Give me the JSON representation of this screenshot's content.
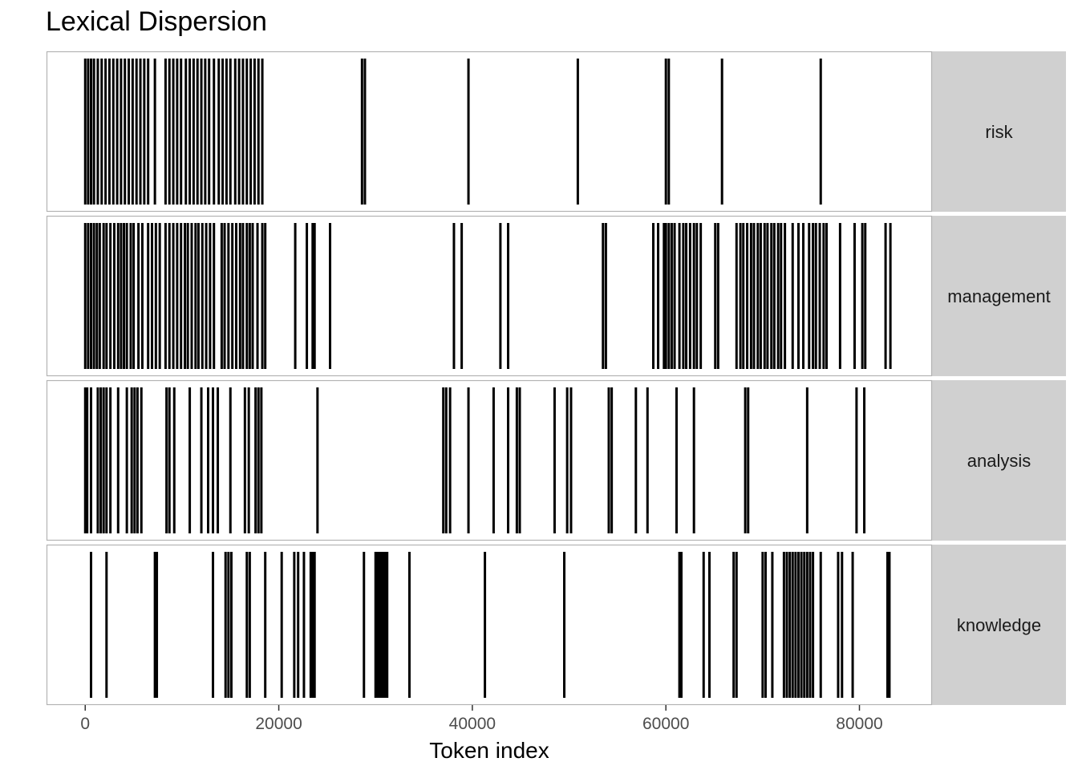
{
  "chart_data": {
    "type": "dispersion",
    "title": "Lexical Dispersion",
    "xlabel": "Token index",
    "ylabel": "",
    "xlim": [
      -4000,
      87500
    ],
    "x_ticks": [
      0,
      20000,
      40000,
      60000,
      80000
    ],
    "x_tick_labels": [
      "0",
      "20000",
      "40000",
      "60000",
      "80000"
    ],
    "grid": false,
    "facet_strip_position": "right",
    "panels": [
      {
        "name": "risk",
        "positions": [
          0,
          300,
          600,
          900,
          1300,
          1700,
          2100,
          2500,
          2900,
          3300,
          3700,
          4100,
          4500,
          4900,
          5300,
          5700,
          6100,
          6500,
          7200,
          8300,
          8700,
          9100,
          9500,
          9900,
          10400,
          10800,
          11200,
          11600,
          12000,
          12400,
          12800,
          13300,
          13800,
          14200,
          14600,
          15000,
          15500,
          15900,
          16300,
          16700,
          17100,
          17500,
          17900,
          18300,
          28600,
          28900,
          39600,
          50900,
          60000,
          60300,
          65800,
          76000
        ]
      },
      {
        "name": "management",
        "positions": [
          0,
          300,
          600,
          900,
          1200,
          1500,
          1900,
          2200,
          2600,
          3000,
          3400,
          3700,
          4000,
          4300,
          4700,
          5000,
          5500,
          5900,
          6500,
          6900,
          7300,
          7700,
          8300,
          8700,
          9100,
          9500,
          9900,
          10300,
          10600,
          11000,
          11400,
          11700,
          12100,
          12500,
          12900,
          13300,
          14100,
          14400,
          14800,
          15200,
          15600,
          16000,
          16300,
          16700,
          17000,
          17300,
          17800,
          18300,
          18600,
          21700,
          22900,
          23500,
          23700,
          25300,
          38100,
          38900,
          42900,
          43700,
          53500,
          53800,
          58700,
          59200,
          59800,
          60000,
          60300,
          60600,
          60900,
          61400,
          61800,
          62100,
          62500,
          62900,
          63200,
          63600,
          65100,
          65400,
          67300,
          67700,
          68000,
          68400,
          68800,
          69100,
          69500,
          69800,
          70200,
          70500,
          70900,
          71200,
          71600,
          71900,
          72300,
          73100,
          73700,
          74200,
          74800,
          75200,
          75500,
          75900,
          76300,
          76600,
          78000,
          79500,
          80300,
          80600,
          82700,
          83200
        ]
      },
      {
        "name": "analysis",
        "positions": [
          0,
          200,
          600,
          1300,
          1600,
          1900,
          2200,
          2600,
          3400,
          4300,
          4800,
          5100,
          5400,
          5800,
          8400,
          8700,
          9200,
          10800,
          12000,
          12700,
          13200,
          13700,
          15000,
          16500,
          16900,
          17600,
          17900,
          18200,
          24000,
          37000,
          37300,
          37700,
          39600,
          42200,
          43700,
          44600,
          44900,
          48500,
          49800,
          50200,
          54100,
          54400,
          56900,
          58100,
          61100,
          62900,
          68200,
          68500,
          74600,
          79700,
          80500
        ]
      },
      {
        "name": "knowledge",
        "positions": [
          600,
          2200,
          7200,
          7400,
          13200,
          14500,
          14800,
          15100,
          16700,
          17000,
          18600,
          20300,
          21600,
          22000,
          22600,
          23300,
          23500,
          23700,
          28800,
          30000,
          30150,
          30300,
          30450,
          30600,
          30750,
          30900,
          31050,
          31200,
          33500,
          41300,
          49500,
          61400,
          61600,
          63900,
          64500,
          67000,
          67300,
          70000,
          70300,
          71000,
          72200,
          72500,
          72800,
          73100,
          73400,
          73700,
          74000,
          74300,
          74600,
          74900,
          75200,
          76000,
          77800,
          78200,
          79300,
          82900,
          83100
        ]
      }
    ]
  }
}
